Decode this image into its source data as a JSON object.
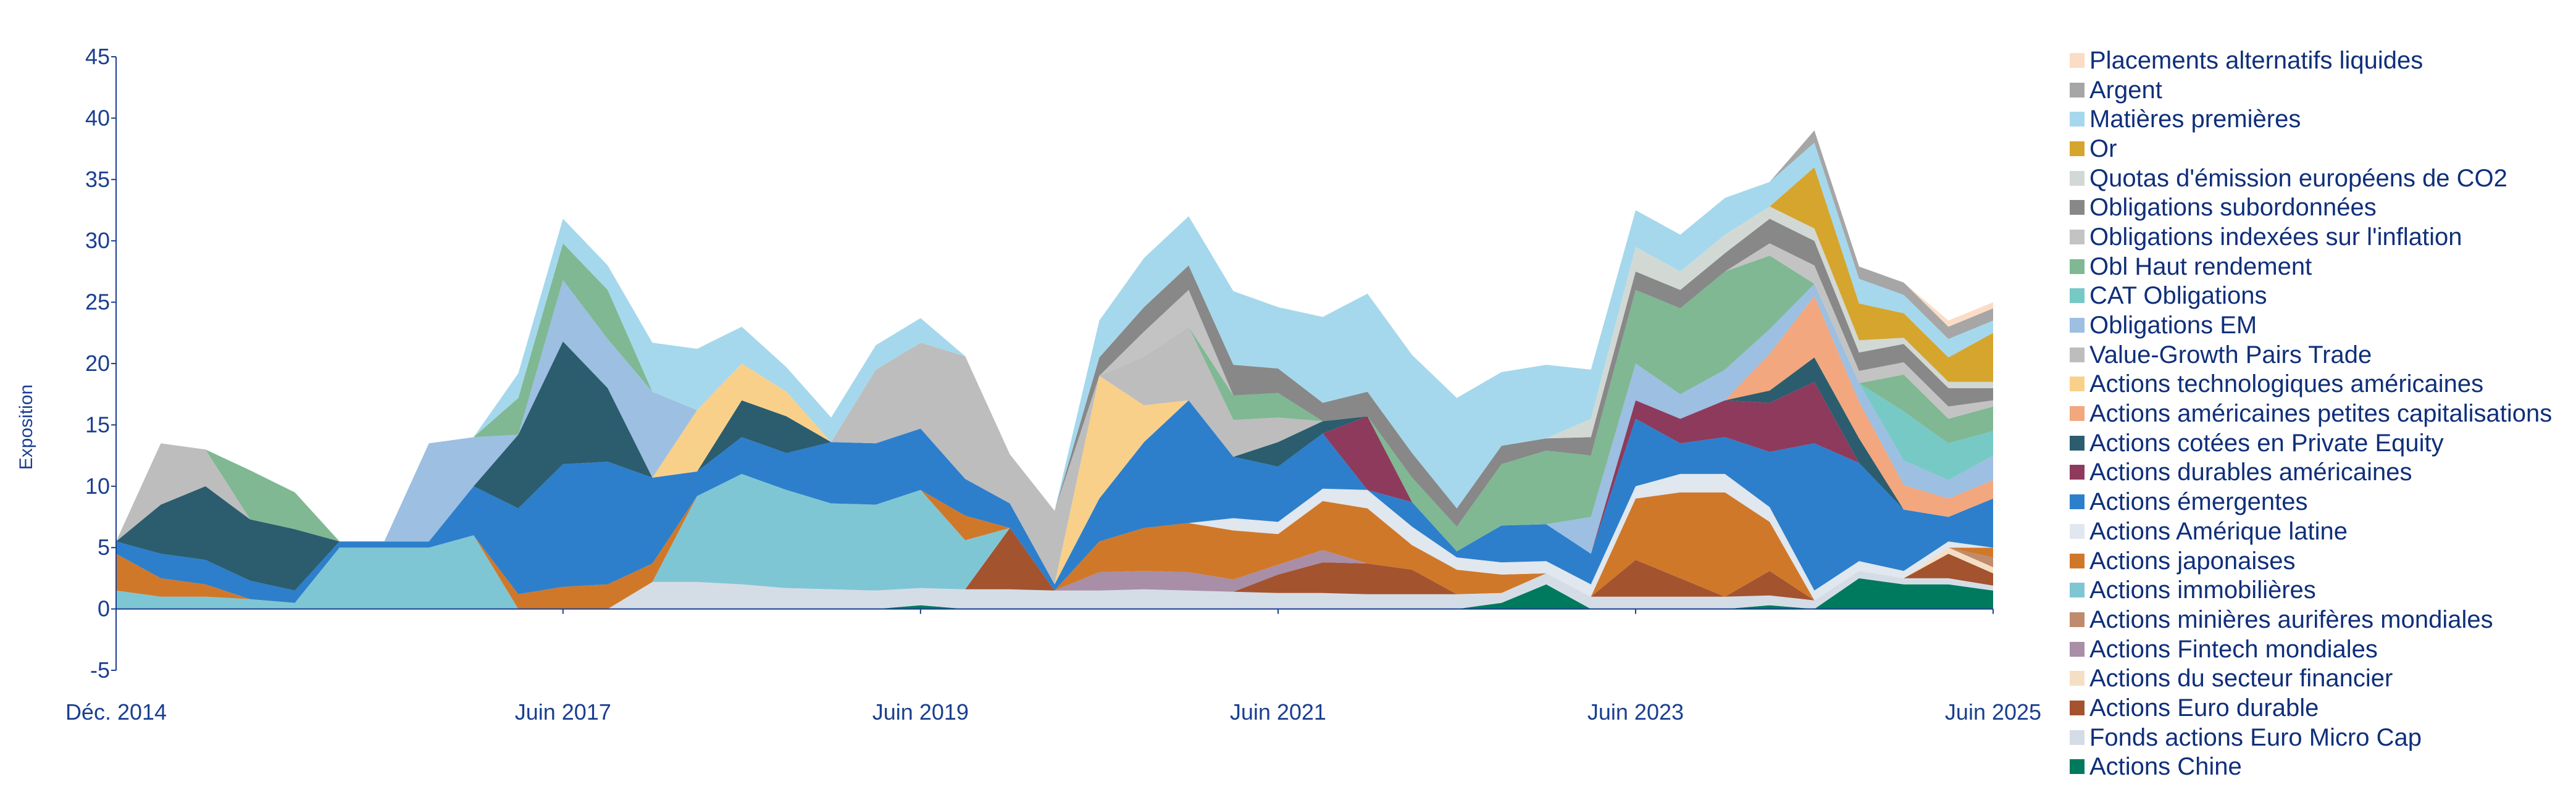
{
  "chart_data": {
    "type": "area",
    "stacked": true,
    "ylabel": "Exposition",
    "xlabel": "",
    "ylim": [
      -5,
      45
    ],
    "y_ticks": [
      "-5",
      "0",
      "5",
      "10",
      "15",
      "20",
      "25",
      "30",
      "35",
      "40",
      "45"
    ],
    "x_range": [
      2014.92,
      2025.42
    ],
    "x_ticks": [
      {
        "value": 2014.92,
        "label": "Déc. 2014"
      },
      {
        "value": 2017.42,
        "label": "Juin 2017"
      },
      {
        "value": 2019.42,
        "label": "Juin 2019"
      },
      {
        "value": 2021.42,
        "label": "Juin 2021"
      },
      {
        "value": 2023.42,
        "label": "Juin 2023"
      },
      {
        "value": 2025.42,
        "label": "Juin 2025"
      }
    ],
    "grid": false,
    "legend_position": "right",
    "x": [
      2014.92,
      2015.17,
      2015.42,
      2015.67,
      2015.92,
      2016.17,
      2016.42,
      2016.67,
      2016.92,
      2017.17,
      2017.42,
      2017.67,
      2017.92,
      2018.17,
      2018.42,
      2018.67,
      2018.92,
      2019.17,
      2019.42,
      2019.67,
      2019.92,
      2020.17,
      2020.42,
      2020.67,
      2020.92,
      2021.17,
      2021.42,
      2021.67,
      2021.92,
      2022.17,
      2022.42,
      2022.67,
      2022.92,
      2023.17,
      2023.42,
      2023.67,
      2023.92,
      2024.17,
      2024.42,
      2024.67,
      2024.92,
      2025.17,
      2025.42
    ],
    "series": [
      {
        "name": "Actions Chine",
        "color": "#007a5e",
        "values": [
          0,
          0,
          0,
          0,
          0,
          0,
          0,
          0,
          0,
          0,
          0,
          0,
          0,
          0,
          0,
          0,
          0,
          0,
          0.3,
          0,
          0,
          0,
          0,
          0,
          0,
          0,
          0,
          0,
          0,
          0,
          0,
          0.5,
          2,
          0,
          0,
          0,
          0,
          0.3,
          0,
          2.5,
          2,
          2,
          1.5
        ]
      },
      {
        "name": "Fonds actions Euro Micro Cap",
        "color": "#d4dde6",
        "values": [
          0,
          0,
          0,
          0,
          0,
          0,
          0,
          0,
          0,
          0,
          0,
          0,
          2.2,
          2.2,
          2,
          1.7,
          1.6,
          1.5,
          1.4,
          1.6,
          1.6,
          1.5,
          1.5,
          1.6,
          1.5,
          1.4,
          1.3,
          1.3,
          1.2,
          1.2,
          1.2,
          0.8,
          0.9,
          1,
          1,
          1,
          1,
          0.8,
          0.7,
          0.6,
          0.5,
          0.5,
          0.4
        ]
      },
      {
        "name": "Actions Euro durable",
        "color": "#a4532f",
        "values": [
          0,
          0,
          0,
          0,
          0,
          0,
          0,
          0,
          0,
          0,
          0,
          0,
          0,
          0,
          0,
          0,
          0,
          0,
          0,
          0,
          5,
          0,
          0,
          0,
          0,
          0,
          1.5,
          2.5,
          2.5,
          2,
          0,
          0,
          0,
          0,
          3,
          1.5,
          0,
          2,
          0,
          0,
          0,
          2,
          1
        ]
      },
      {
        "name": "Actions du secteur financier",
        "color": "#f5dfc4",
        "values": [
          0,
          0,
          0,
          0,
          0,
          0,
          0,
          0,
          0,
          0,
          0,
          0,
          0,
          0,
          0,
          0,
          0,
          0,
          0,
          0,
          0,
          0,
          0,
          0,
          0,
          0,
          0,
          0,
          0,
          0,
          0,
          0,
          0,
          0,
          0,
          0,
          0,
          0,
          0,
          0,
          0,
          0.5,
          0.5
        ]
      },
      {
        "name": "Actions Fintech mondiales",
        "color": "#a88ea7",
        "values": [
          0,
          0,
          0,
          0,
          0,
          0,
          0,
          0,
          0,
          0,
          0,
          0,
          0,
          0,
          0,
          0,
          0,
          0,
          0,
          0,
          0,
          0,
          1.5,
          1.5,
          1.5,
          1,
          0.8,
          1,
          0,
          0,
          0,
          0,
          0,
          0,
          0,
          0,
          0,
          0,
          0,
          0,
          0,
          0,
          0
        ]
      },
      {
        "name": "Actions minières aurifères mondiales",
        "color": "#c08a6c",
        "values": [
          0,
          0,
          0,
          0,
          0,
          0,
          0,
          0,
          0,
          0,
          0,
          0,
          0,
          0,
          0,
          0,
          0,
          0,
          0,
          0,
          0,
          0,
          0,
          0,
          0,
          0,
          0,
          0,
          0,
          0,
          0,
          0,
          0,
          0,
          0,
          0,
          0,
          0,
          0,
          0,
          0,
          0,
          0.8
        ]
      },
      {
        "name": "Actions immobilières",
        "color": "#7fc6d5",
        "values": [
          1.5,
          1,
          1,
          0.8,
          0.5,
          5,
          5,
          5,
          6,
          0,
          0,
          0,
          0,
          7,
          9,
          8,
          7,
          7,
          8,
          4,
          0,
          0,
          0,
          0,
          0,
          0,
          0,
          0,
          0,
          0,
          0,
          0,
          0,
          0,
          0,
          0,
          0,
          0,
          0,
          0,
          0,
          0,
          0
        ]
      },
      {
        "name": "Actions japonaises",
        "color": "#d0782a",
        "values": [
          3,
          1.5,
          1,
          0,
          0,
          0,
          0,
          0,
          0,
          1.2,
          1.8,
          2,
          1.5,
          0,
          0,
          0,
          0,
          0,
          0,
          2,
          0,
          0,
          2.5,
          3.5,
          4,
          4,
          2.5,
          4,
          4.5,
          2,
          2,
          1.5,
          0,
          0,
          5,
          7,
          8.5,
          4,
          0,
          0,
          0,
          0,
          0.8
        ]
      },
      {
        "name": "Actions Amérique latine",
        "color": "#e0e7ee",
        "values": [
          0,
          0,
          0,
          0,
          0,
          0,
          0,
          0,
          0,
          0,
          0,
          0,
          0,
          0,
          0,
          0,
          0,
          0,
          0,
          0,
          0,
          0,
          0,
          0,
          0,
          1,
          1,
          1,
          1.5,
          1.5,
          1,
          1,
          1,
          1,
          1,
          1.5,
          1.5,
          1.2,
          0.8,
          0.8,
          0.6,
          0.5,
          0
        ]
      },
      {
        "name": "Actions émergentes",
        "color": "#2d7fcb",
        "values": [
          1,
          2,
          2,
          1.5,
          1,
          0.5,
          0.5,
          0.5,
          4,
          7,
          10,
          10,
          7,
          2,
          3,
          3,
          5,
          5,
          5,
          3,
          2,
          0.5,
          3.5,
          7,
          10,
          5,
          4.5,
          4.5,
          0,
          2,
          0.5,
          3,
          3,
          2.5,
          5.5,
          2.5,
          3,
          4.5,
          12,
          8,
          5,
          2,
          4
        ]
      },
      {
        "name": "Actions durables américaines",
        "color": "#8e3a5c",
        "values": [
          0,
          0,
          0,
          0,
          0,
          0,
          0,
          0,
          0,
          0,
          0,
          0,
          0,
          0,
          0,
          0,
          0,
          0,
          0,
          0,
          0,
          0,
          0,
          0,
          0,
          0,
          0,
          0,
          6,
          0,
          0,
          0,
          0,
          0,
          1.5,
          2,
          3,
          4,
          5,
          0,
          0,
          0,
          0
        ]
      },
      {
        "name": "Actions cotées en Private Equity",
        "color": "#2b5d6e",
        "values": [
          0,
          4,
          6,
          5,
          5,
          0,
          0,
          0,
          0,
          6,
          10,
          6,
          0,
          0,
          3,
          3,
          0,
          0,
          0,
          0,
          0,
          0,
          0,
          0,
          0,
          0,
          2,
          1,
          0,
          0,
          0,
          0,
          0,
          0,
          0,
          0,
          0,
          1,
          2,
          2,
          0,
          0,
          0
        ]
      },
      {
        "name": "Actions américaines petites capitalisations",
        "color": "#f2a77e",
        "values": [
          0,
          0,
          0,
          0,
          0,
          0,
          0,
          0,
          0,
          0,
          0,
          0,
          0,
          0,
          0,
          0,
          0,
          0,
          0,
          0,
          0,
          0,
          0,
          0,
          0,
          0,
          0,
          0,
          0,
          0,
          0,
          0,
          0,
          0,
          0,
          0,
          0,
          3,
          5,
          3,
          2,
          1.5,
          1.5
        ]
      },
      {
        "name": "Actions technologiques américaines",
        "color": "#f9d08a",
        "values": [
          0,
          0,
          0,
          0,
          0,
          0,
          0,
          0,
          0,
          0,
          0,
          0,
          0,
          5,
          3,
          2,
          0,
          0,
          0,
          0,
          0,
          0,
          10,
          3,
          0,
          0,
          0,
          0,
          0,
          0,
          0,
          0,
          0,
          0,
          0,
          0,
          0,
          0,
          0,
          0,
          0,
          0,
          0
        ]
      },
      {
        "name": "Value-Growth Pairs Trade",
        "color": "#bdbdbd",
        "values": [
          0,
          5,
          3,
          0,
          0,
          0,
          0,
          0,
          0,
          0,
          0,
          0,
          0,
          0,
          0,
          0,
          0,
          6,
          7,
          10,
          4,
          6,
          0,
          4,
          6,
          3,
          2,
          0,
          0,
          0,
          0,
          0,
          0,
          0,
          0,
          0,
          0,
          0,
          0,
          0,
          0,
          0,
          0
        ]
      },
      {
        "name": "Obligations EM",
        "color": "#9cbfe2",
        "values": [
          0,
          0,
          0,
          0,
          0,
          0,
          0,
          8,
          4,
          0,
          5,
          4,
          7,
          0,
          0,
          0,
          0,
          0,
          0,
          0,
          0,
          0,
          0,
          0,
          0,
          0,
          0,
          0,
          0,
          0,
          0,
          0,
          0,
          3,
          3,
          2,
          2.5,
          2,
          1,
          1.5,
          2,
          1.5,
          2
        ]
      },
      {
        "name": "CAT Obligations",
        "color": "#77c9c5",
        "values": [
          0,
          0,
          0,
          0,
          0,
          0,
          0,
          0,
          0,
          0,
          0,
          0,
          0,
          0,
          0,
          0,
          0,
          0,
          0,
          0,
          0,
          0,
          0,
          0,
          0,
          0,
          0,
          0,
          0,
          0,
          0,
          0,
          0,
          0,
          0,
          0,
          0,
          0,
          0,
          0,
          4,
          3,
          2
        ]
      },
      {
        "name": "Obl Haut rendement",
        "color": "#7fb893",
        "values": [
          0,
          0,
          0,
          4,
          3,
          0,
          0,
          0,
          0,
          3,
          3,
          4,
          0,
          0,
          0,
          0,
          0,
          0,
          0,
          0,
          0,
          0,
          0,
          0,
          0,
          2,
          2,
          0,
          0,
          2,
          2,
          5,
          6,
          5,
          6,
          7,
          8,
          6,
          0,
          0,
          3,
          2,
          2
        ]
      },
      {
        "name": "Obligations indexées sur l'inflation",
        "color": "#c3c3c3",
        "values": [
          0,
          0,
          0,
          0,
          0,
          0,
          0,
          0,
          0,
          0,
          0,
          0,
          0,
          0,
          0,
          0,
          0,
          0,
          0,
          0,
          0,
          0,
          0,
          2,
          3,
          0,
          0,
          0,
          0,
          0,
          0,
          0,
          0,
          0,
          0,
          0,
          0,
          1,
          1.5,
          1,
          1,
          1,
          0.5
        ]
      },
      {
        "name": "Obligations subordonnées",
        "color": "#888888",
        "values": [
          0,
          0,
          0,
          0,
          0,
          0,
          0,
          0,
          0,
          0,
          0,
          0,
          0,
          0,
          0,
          0,
          0,
          0,
          0,
          0,
          0,
          0,
          1.5,
          2,
          2,
          2.5,
          2,
          1.5,
          2,
          2,
          1.5,
          1.5,
          1,
          1.5,
          1.5,
          1.5,
          1.5,
          2,
          2,
          1.5,
          1.5,
          1.5,
          1
        ]
      },
      {
        "name": "Quotas d'émission européens de CO2",
        "color": "#d2d9d4",
        "values": [
          0,
          0,
          0,
          0,
          0,
          0,
          0,
          0,
          0,
          0,
          0,
          0,
          0,
          0,
          0,
          0,
          0,
          0,
          0,
          0,
          0,
          0,
          0,
          0,
          0,
          0,
          0,
          0,
          0,
          0,
          0,
          0,
          0,
          1.5,
          2,
          1.5,
          1.5,
          1,
          1,
          1,
          0.5,
          0.5,
          0.5
        ]
      },
      {
        "name": "Or",
        "color": "#d6a52e",
        "values": [
          0,
          0,
          0,
          0,
          0,
          0,
          0,
          0,
          0,
          0,
          0,
          0,
          0,
          0,
          0,
          0,
          0,
          0,
          0,
          0,
          0,
          0,
          0,
          0,
          0,
          0,
          0,
          0,
          0,
          0,
          0,
          0,
          0,
          0,
          0,
          0,
          0,
          0,
          5,
          3,
          2,
          2,
          4
        ]
      },
      {
        "name": "Matières premières",
        "color": "#a5d8ec",
        "values": [
          0,
          0,
          0,
          0,
          0,
          0,
          0,
          0,
          0,
          2,
          2,
          2,
          4,
          5,
          3,
          2,
          2,
          2,
          2,
          0,
          0,
          0,
          3,
          4,
          4,
          6,
          5,
          7,
          8,
          8,
          9,
          6,
          6,
          4,
          3,
          3,
          3,
          2,
          2,
          2,
          1.5,
          1.5,
          1
        ]
      },
      {
        "name": "Argent",
        "color": "#a6a6a6",
        "values": [
          0,
          0,
          0,
          0,
          0,
          0,
          0,
          0,
          0,
          0,
          0,
          0,
          0,
          0,
          0,
          0,
          0,
          0,
          0,
          0,
          0,
          0,
          0,
          0,
          0,
          0,
          0,
          0,
          0,
          0,
          0,
          0,
          0,
          0,
          0,
          0,
          0,
          0,
          1,
          1,
          1,
          1,
          1
        ]
      },
      {
        "name": "Placements alternatifs liquides",
        "color": "#fbdcc5",
        "values": [
          0,
          0,
          0,
          0,
          0,
          0,
          0,
          0,
          0,
          0,
          0,
          0,
          0,
          0,
          0,
          0,
          0,
          0,
          0,
          0,
          0,
          0,
          0,
          0,
          0,
          0,
          0,
          0,
          0,
          0,
          0,
          0,
          0,
          0,
          0,
          0,
          0,
          0,
          0,
          0,
          0,
          0.5,
          0.5
        ]
      }
    ]
  }
}
